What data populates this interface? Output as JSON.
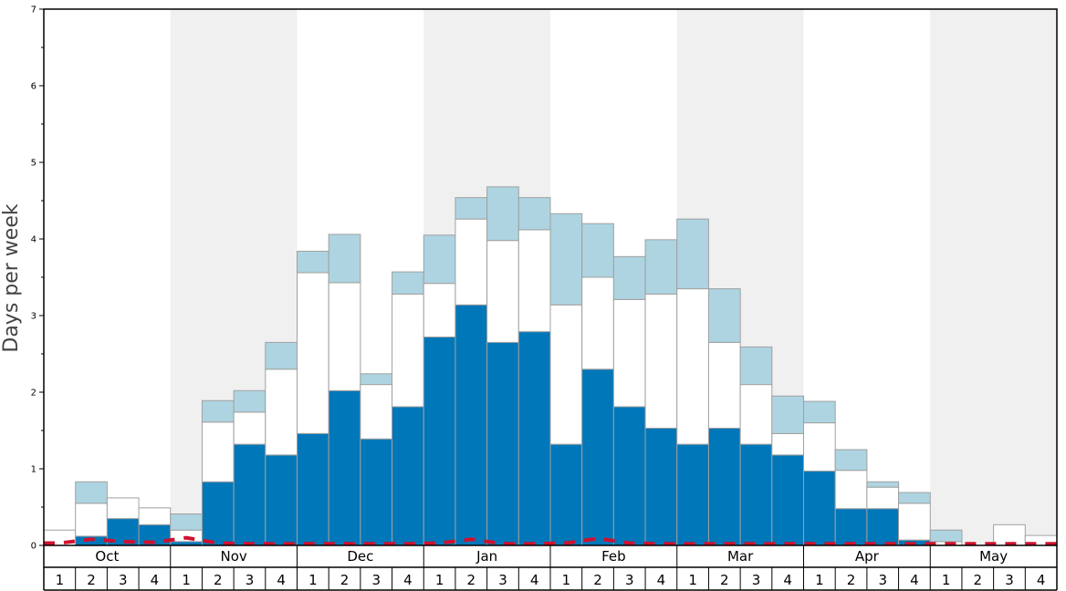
{
  "chart_data": {
    "type": "bar",
    "stacked": true,
    "ylabel": "Days per week",
    "ylim": [
      0,
      7
    ],
    "yticks": [
      0,
      1,
      2,
      3,
      4,
      5,
      6,
      7
    ],
    "months": [
      "Oct",
      "Nov",
      "Dec",
      "Jan",
      "Feb",
      "Mar",
      "Apr",
      "May"
    ],
    "weeks": [
      "1",
      "2",
      "3",
      "4"
    ],
    "alternate_month_shading": true,
    "colors": {
      "dark": "#0077b9",
      "white": "#ffffff",
      "light": "#aed4e1",
      "dashed_line": "#d0102e",
      "shade": "#f0f0f0",
      "bar_edge": "#a0a0a0"
    },
    "series": [
      {
        "values": [
          0,
          0.12,
          0.35,
          0.27,
          0.05,
          0.83,
          1.32,
          1.18,
          1.46,
          2.02,
          1.39,
          1.81,
          2.72,
          3.14,
          2.65,
          2.79,
          1.32,
          2.3,
          1.81,
          1.53,
          1.32,
          1.53,
          1.32,
          1.18,
          0.97,
          0.48,
          0.48,
          0.07,
          0,
          0,
          0,
          0
        ]
      },
      {
        "values": [
          0.2,
          0.43,
          0.27,
          0.22,
          0.15,
          0.78,
          0.42,
          1.12,
          2.1,
          1.41,
          0.71,
          1.47,
          0.7,
          1.12,
          1.33,
          1.33,
          1.82,
          1.2,
          1.4,
          1.75,
          2.03,
          1.12,
          0.78,
          0.28,
          0.63,
          0.5,
          0.28,
          0.48,
          0.05,
          0,
          0.27,
          0.13
        ]
      },
      {
        "values": [
          0,
          0.28,
          0,
          0,
          0.21,
          0.28,
          0.28,
          0.35,
          0.28,
          0.63,
          0.14,
          0.29,
          0.63,
          0.28,
          0.7,
          0.42,
          1.19,
          0.7,
          0.56,
          0.71,
          0.91,
          0.7,
          0.49,
          0.49,
          0.28,
          0.27,
          0.07,
          0.14,
          0.15,
          0,
          0,
          0
        ]
      }
    ],
    "dashed_line": [
      0.03,
      0.08,
      0.05,
      0.04,
      0.1,
      0.03,
      0.02,
      0.02,
      0.02,
      0.02,
      0.02,
      0.02,
      0.03,
      0.08,
      0.02,
      0.02,
      0.03,
      0.09,
      0.03,
      0.02,
      0.02,
      0.02,
      0.02,
      0.02,
      0.02,
      0.02,
      0.02,
      0.02,
      0.02,
      0.02,
      0.02,
      0.02
    ]
  }
}
